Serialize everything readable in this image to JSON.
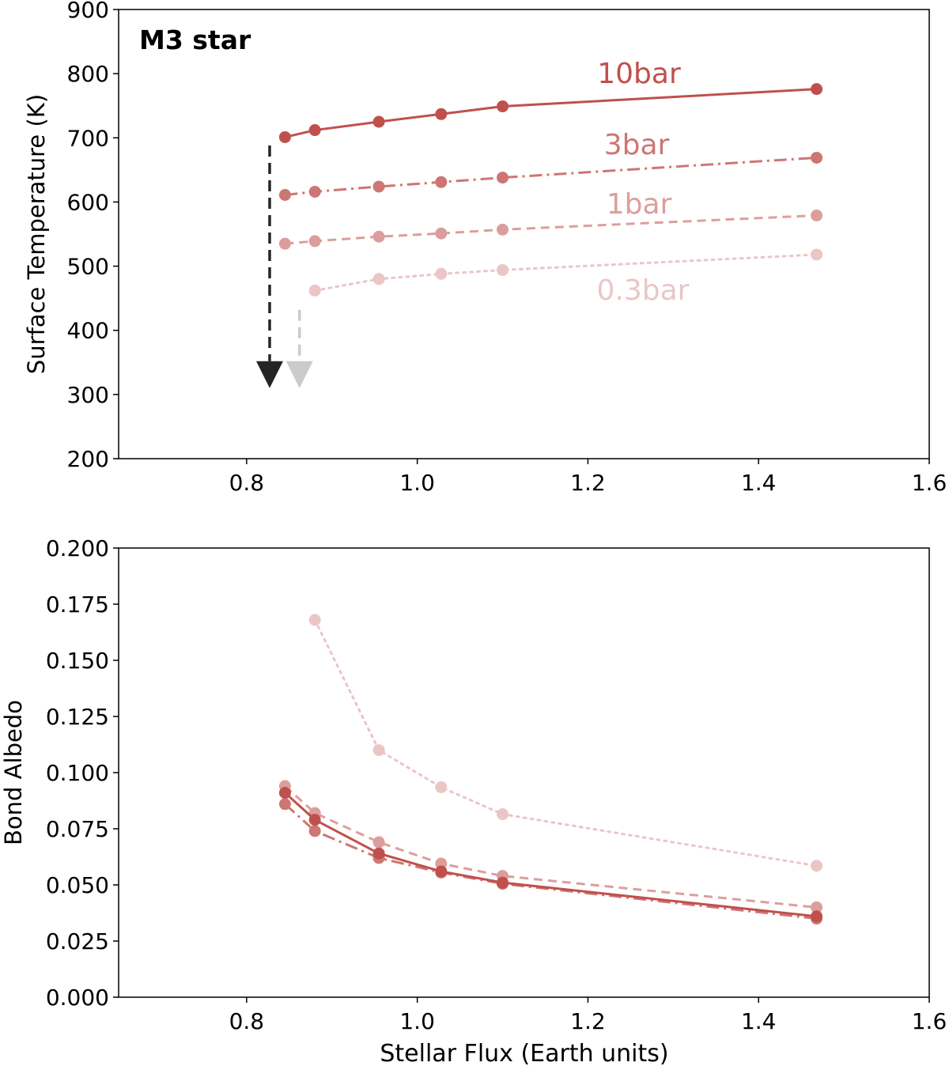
{
  "figure": {
    "xlabel": "Stellar Flux (Earth units)"
  },
  "chart_data": [
    {
      "type": "line",
      "ylabel": "Surface Temperature (K)",
      "annotation": "M3 star",
      "xlim": [
        0.65,
        1.6
      ],
      "ylim": [
        200,
        900
      ],
      "xticks": [
        "0.8",
        "1.0",
        "1.2",
        "1.4",
        "1.6"
      ],
      "yticks": [
        "200",
        "300",
        "400",
        "500",
        "600",
        "700",
        "800",
        "900"
      ],
      "series": [
        {
          "name": "10bar",
          "style": "solid",
          "color": "#c0504d",
          "opacity": 1.0,
          "x": [
            0.845,
            0.88,
            0.955,
            1.028,
            1.1,
            1.468
          ],
          "y": [
            701,
            712,
            725,
            737,
            749,
            776
          ]
        },
        {
          "name": "3bar",
          "style": "dashdot",
          "color": "#c0504d",
          "opacity": 0.78,
          "x": [
            0.845,
            0.88,
            0.955,
            1.028,
            1.1,
            1.468
          ],
          "y": [
            611,
            616,
            624,
            631,
            638,
            669
          ]
        },
        {
          "name": "1bar",
          "style": "dashed",
          "color": "#c0504d",
          "opacity": 0.55,
          "x": [
            0.845,
            0.88,
            0.955,
            1.028,
            1.1,
            1.468
          ],
          "y": [
            535,
            539,
            546,
            551,
            557,
            579
          ]
        },
        {
          "name": "0.3bar",
          "style": "dotted",
          "color": "#c0504d",
          "opacity": 0.32,
          "x": [
            0.88,
            0.955,
            1.028,
            1.1,
            1.468
          ],
          "y": [
            462,
            480,
            488,
            494,
            518
          ]
        }
      ],
      "arrows": [
        {
          "x": 0.827,
          "y_from": 688,
          "y_to": 310,
          "color": "#000000",
          "opacity": 0.85
        },
        {
          "x": 0.862,
          "y_from": 432,
          "y_to": 310,
          "color": "#000000",
          "opacity": 0.2
        }
      ]
    },
    {
      "type": "line",
      "ylabel": "Bond Albedo",
      "xlim": [
        0.65,
        1.6
      ],
      "ylim": [
        0.0,
        0.2
      ],
      "xticks": [
        "0.8",
        "1.0",
        "1.2",
        "1.4",
        "1.6"
      ],
      "yticks": [
        "0.000",
        "0.025",
        "0.050",
        "0.075",
        "0.100",
        "0.125",
        "0.150",
        "0.175",
        "0.200"
      ],
      "series": [
        {
          "name": "10bar",
          "style": "solid",
          "color": "#c0504d",
          "opacity": 1.0,
          "x": [
            0.845,
            0.88,
            0.955,
            1.028,
            1.1,
            1.468
          ],
          "y": [
            0.091,
            0.079,
            0.064,
            0.056,
            0.051,
            0.036
          ]
        },
        {
          "name": "3bar",
          "style": "dashdot",
          "color": "#c0504d",
          "opacity": 0.78,
          "x": [
            0.845,
            0.88,
            0.955,
            1.028,
            1.1,
            1.468
          ],
          "y": [
            0.086,
            0.074,
            0.062,
            0.0555,
            0.0505,
            0.035
          ]
        },
        {
          "name": "1bar",
          "style": "dashed",
          "color": "#c0504d",
          "opacity": 0.55,
          "x": [
            0.845,
            0.88,
            0.955,
            1.028,
            1.1,
            1.468
          ],
          "y": [
            0.094,
            0.082,
            0.069,
            0.0595,
            0.054,
            0.04
          ]
        },
        {
          "name": "0.3bar",
          "style": "dotted",
          "color": "#c0504d",
          "opacity": 0.32,
          "x": [
            0.88,
            0.955,
            1.028,
            1.1,
            1.468
          ],
          "y": [
            0.168,
            0.11,
            0.0935,
            0.0815,
            0.0585
          ]
        }
      ]
    }
  ]
}
